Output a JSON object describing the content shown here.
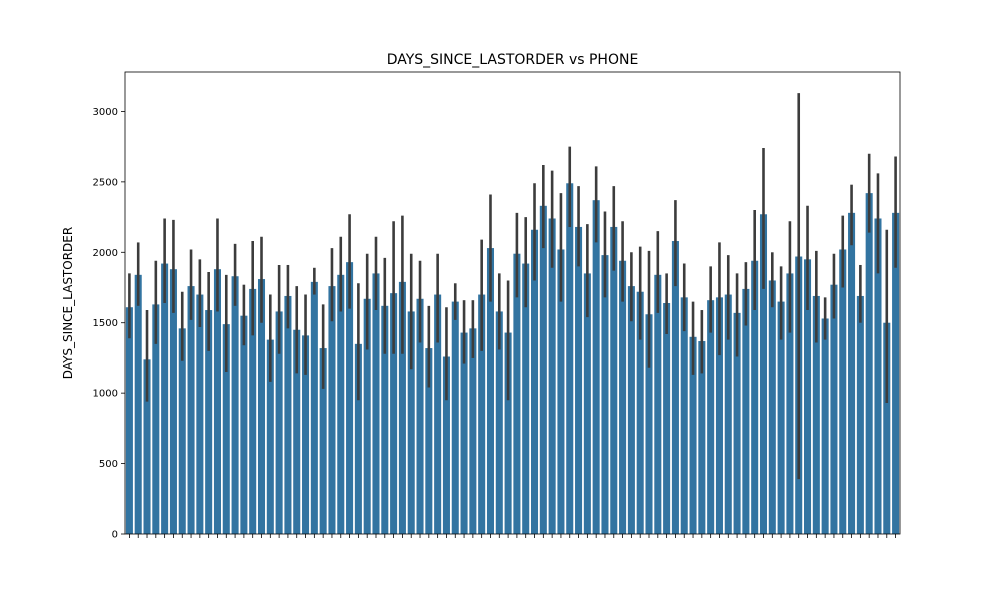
{
  "chart_data": {
    "type": "bar",
    "title": "DAYS_SINCE_LASTORDER vs PHONE",
    "xlabel": "",
    "ylabel": "DAYS_SINCE_LASTORDER",
    "ylim": [
      0,
      3280
    ],
    "yticks": [
      0,
      500,
      1000,
      1500,
      2000,
      2500,
      3000
    ],
    "grid": false,
    "legend": "none",
    "bar_color": "#3274a1",
    "errorbar_color": "#3c3c3c",
    "x_tick_labels_note": "",
    "values": [
      1610,
      1840,
      1240,
      1630,
      1920,
      1880,
      1460,
      1760,
      1700,
      1590,
      1880,
      1490,
      1830,
      1550,
      1740,
      1810,
      1380,
      1580,
      1690,
      1450,
      1410,
      1790,
      1320,
      1760,
      1840,
      1930,
      1350,
      1670,
      1850,
      1620,
      1710,
      1790,
      1580,
      1670,
      1320,
      1700,
      1260,
      1650,
      1430,
      1460,
      1700,
      2030,
      1580,
      1430,
      1990,
      1920,
      2160,
      2330,
      2240,
      2020,
      2490,
      2180,
      1850,
      2370,
      1980,
      2180,
      1940,
      1760,
      1720,
      1560,
      1840,
      1640,
      2080,
      1680,
      1400,
      1370,
      1660,
      1680,
      1700,
      1570,
      1740,
      1940,
      2270,
      1800,
      1650,
      1850,
      1970,
      1950,
      1690,
      1530,
      1770,
      2020,
      2280,
      1690,
      2420,
      2240,
      1500,
      2280
    ],
    "error_low": [
      1390,
      1620,
      940,
      1350,
      1640,
      1570,
      1230,
      1520,
      1470,
      1300,
      1580,
      1150,
      1620,
      1340,
      1410,
      1500,
      1080,
      1280,
      1460,
      1140,
      1130,
      1700,
      1030,
      1510,
      1580,
      1600,
      950,
      1310,
      1590,
      1280,
      1280,
      1280,
      1170,
      1360,
      1040,
      1360,
      950,
      1520,
      1210,
      1250,
      1300,
      1650,
      1310,
      950,
      1680,
      1610,
      1800,
      2030,
      1890,
      1650,
      2180,
      1900,
      1540,
      2070,
      1680,
      1870,
      1650,
      1510,
      1380,
      1180,
      1570,
      1420,
      1760,
      1440,
      1130,
      1140,
      1430,
      1270,
      1380,
      1260,
      1480,
      1590,
      1740,
      1610,
      1380,
      1430,
      390,
      1590,
      1360,
      1380,
      1530,
      1750,
      2050,
      1500,
      2140,
      1850,
      930,
      1890
    ],
    "error_high": [
      1850,
      2070,
      1590,
      1940,
      2240,
      2230,
      1720,
      2020,
      1950,
      1860,
      2240,
      1840,
      2060,
      1770,
      2080,
      2110,
      1700,
      1910,
      1910,
      1760,
      1700,
      1890,
      1630,
      2030,
      2110,
      2270,
      1780,
      1990,
      2110,
      1960,
      2220,
      2260,
      1990,
      1940,
      1620,
      1990,
      1610,
      1780,
      1660,
      1660,
      2090,
      2410,
      1850,
      1800,
      2280,
      2250,
      2490,
      2620,
      2580,
      2420,
      2750,
      2470,
      2200,
      2610,
      2290,
      2470,
      2220,
      2000,
      2040,
      2010,
      2150,
      1850,
      2370,
      1920,
      1650,
      1590,
      1900,
      2070,
      1980,
      1850,
      1930,
      2300,
      2740,
      2000,
      1900,
      2220,
      3130,
      2330,
      2010,
      1680,
      1990,
      2260,
      2480,
      1910,
      2700,
      2560,
      2160,
      2680
    ]
  }
}
